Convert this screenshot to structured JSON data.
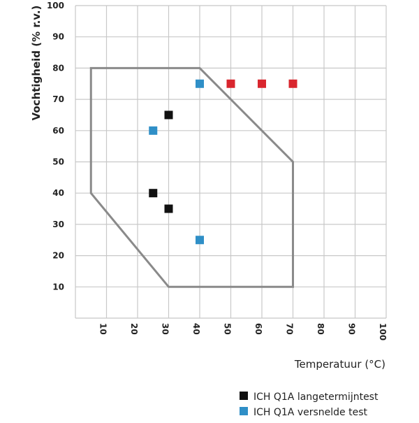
{
  "chart_data": {
    "type": "scatter",
    "xlabel": "Temperatuur (°C)",
    "ylabel": "Vochtigheid (% r.v.)",
    "xlim": [
      0,
      100
    ],
    "ylim": [
      0,
      100
    ],
    "x_ticks": [
      "10",
      "20",
      "30",
      "40",
      "50",
      "60",
      "70",
      "80",
      "90",
      "100"
    ],
    "y_ticks": [
      "10",
      "20",
      "30",
      "40",
      "50",
      "60",
      "70",
      "80",
      "90",
      "100"
    ],
    "grid": true,
    "region_polygon": [
      [
        5,
        80
      ],
      [
        40,
        80
      ],
      [
        70,
        50
      ],
      [
        70,
        10
      ],
      [
        30,
        10
      ],
      [
        5,
        40
      ]
    ],
    "region_color": "#8a8a8a",
    "series": [
      {
        "name": "ICH Q1A langetermijntest",
        "color": "#111111",
        "points": [
          [
            25,
            40
          ],
          [
            30,
            35
          ],
          [
            30,
            65
          ]
        ]
      },
      {
        "name": "ICH Q1A versnelde test",
        "color": "#2f8fc7",
        "points": [
          [
            25,
            60
          ],
          [
            40,
            75
          ],
          [
            40,
            25
          ]
        ]
      },
      {
        "name": "",
        "color": "#d9262e",
        "points": [
          [
            50,
            75
          ],
          [
            60,
            75
          ],
          [
            70,
            75
          ]
        ]
      }
    ],
    "legend_position": "bottom-right"
  }
}
